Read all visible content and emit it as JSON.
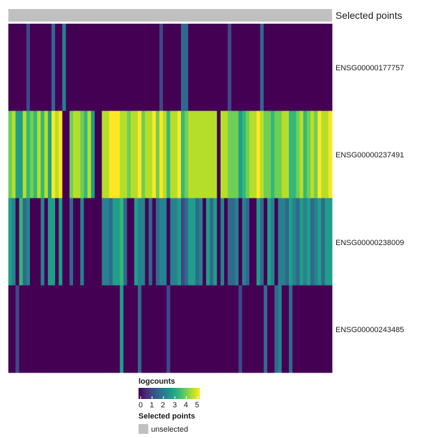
{
  "chart_data": {
    "type": "heatmap",
    "title": "",
    "annotation": {
      "label": "Selected points",
      "category": "unselected",
      "color": "#c0c0c0"
    },
    "rows": [
      "ENSG00000177757",
      "ENSG00000237491",
      "ENSG00000238009",
      "ENSG00000243485"
    ],
    "n_columns": 90,
    "values": [
      [
        0,
        0,
        0,
        0,
        0,
        1.2,
        0,
        0,
        0,
        0,
        0,
        0,
        1.5,
        0,
        0,
        2,
        0,
        0,
        0,
        0,
        0,
        0,
        0,
        0,
        0,
        0,
        0,
        0,
        0,
        0,
        0,
        0,
        0,
        0,
        0,
        0,
        0,
        0,
        0,
        0,
        0,
        0,
        1,
        0,
        0,
        0,
        0,
        0,
        1.5,
        1.5,
        0,
        0,
        0,
        0,
        0,
        0,
        0,
        0,
        0,
        0,
        0,
        1.3,
        0,
        0,
        0,
        0,
        0,
        0,
        0,
        0,
        1.6,
        0,
        0,
        0,
        0,
        0,
        0,
        0,
        0,
        0,
        0,
        0,
        0,
        0,
        0,
        0,
        0,
        0,
        0,
        0
      ],
      [
        3.8,
        4.2,
        3,
        2.8,
        4.6,
        3.2,
        4,
        3.5,
        4.7,
        3.3,
        4.4,
        3,
        4.8,
        4.6,
        5,
        0,
        0,
        3.8,
        4.5,
        4.2,
        4,
        3.6,
        4.4,
        3,
        0,
        0,
        4.2,
        4.6,
        4.8,
        5,
        4.9,
        4.3,
        4.7,
        4.1,
        4.6,
        4.3,
        4.9,
        3.9,
        4.6,
        4.2,
        5,
        4.1,
        4.8,
        4.4,
        3.5,
        4.6,
        4.4,
        4.9,
        3.3,
        4.1,
        4.3,
        4.7,
        4.5,
        4.2,
        4.6,
        4.2,
        4.3,
        4.6,
        0,
        4.5,
        4.2,
        3.8,
        3.7,
        4,
        3,
        3.2,
        4.1,
        4.3,
        4.6,
        4.8,
        4.6,
        4,
        3.8,
        3.5,
        3.8,
        3.9,
        4.4,
        4.6,
        3.6,
        3.3,
        3.9,
        4.4,
        3.2,
        4.1,
        4.2,
        3.7,
        4.8,
        4.2,
        4.5,
        4.8
      ],
      [
        2.5,
        2.2,
        0,
        3.2,
        1.5,
        2,
        0,
        0,
        0,
        2.2,
        0,
        2.6,
        2.8,
        0,
        3,
        0,
        0,
        1.5,
        0,
        0,
        2.4,
        0,
        0,
        0,
        0,
        0,
        2,
        2.4,
        1.8,
        3,
        2.8,
        3.2,
        1.8,
        0,
        0,
        2.6,
        2,
        2,
        0,
        1.5,
        0,
        1.4,
        2,
        2.2,
        0,
        2,
        2.4,
        2.6,
        1.3,
        1.8,
        2.6,
        2.8,
        1.5,
        2.4,
        0,
        2.6,
        1.8,
        2.5,
        0,
        2,
        0,
        1.6,
        1.8,
        2.2,
        0,
        2.4,
        1.6,
        0,
        0,
        2.6,
        1.5,
        0,
        2.5,
        2,
        0,
        2.2,
        2.3,
        1.8,
        2.6,
        2.4,
        1.6,
        2.8,
        2.2,
        2.5,
        1.7,
        2.2,
        2.5,
        1.5,
        2.8,
        3
      ],
      [
        0,
        0,
        1.2,
        0,
        0,
        0,
        0,
        0,
        0,
        0,
        0,
        0,
        0,
        0,
        0,
        0,
        0,
        0,
        0,
        0,
        0,
        0,
        0,
        0,
        0,
        0,
        0,
        0,
        0,
        0,
        0,
        3,
        0,
        0,
        0,
        0,
        1.5,
        0,
        0,
        0,
        0,
        0,
        0,
        0,
        1.2,
        0,
        0,
        0,
        0,
        0,
        0,
        0,
        0,
        0,
        0,
        0,
        0,
        0,
        0,
        0,
        0,
        0,
        0,
        0,
        1.3,
        0,
        0,
        0,
        0,
        0,
        0,
        1.8,
        0,
        0,
        1.6,
        2,
        0,
        0,
        1.8,
        0,
        0,
        0,
        0,
        0,
        0,
        0,
        0,
        0,
        0,
        0
      ]
    ],
    "colorbar": {
      "title": "logcounts",
      "min": 0,
      "max": 5,
      "ticks": [
        "0",
        "1",
        "2",
        "3",
        "4",
        "5"
      ]
    },
    "palette": [
      "#440154",
      "#482878",
      "#3e4989",
      "#31688e",
      "#26828e",
      "#1f9e89",
      "#35b779",
      "#6ece58",
      "#b5de2b",
      "#fde725"
    ],
    "legend_placement": "bottom"
  }
}
